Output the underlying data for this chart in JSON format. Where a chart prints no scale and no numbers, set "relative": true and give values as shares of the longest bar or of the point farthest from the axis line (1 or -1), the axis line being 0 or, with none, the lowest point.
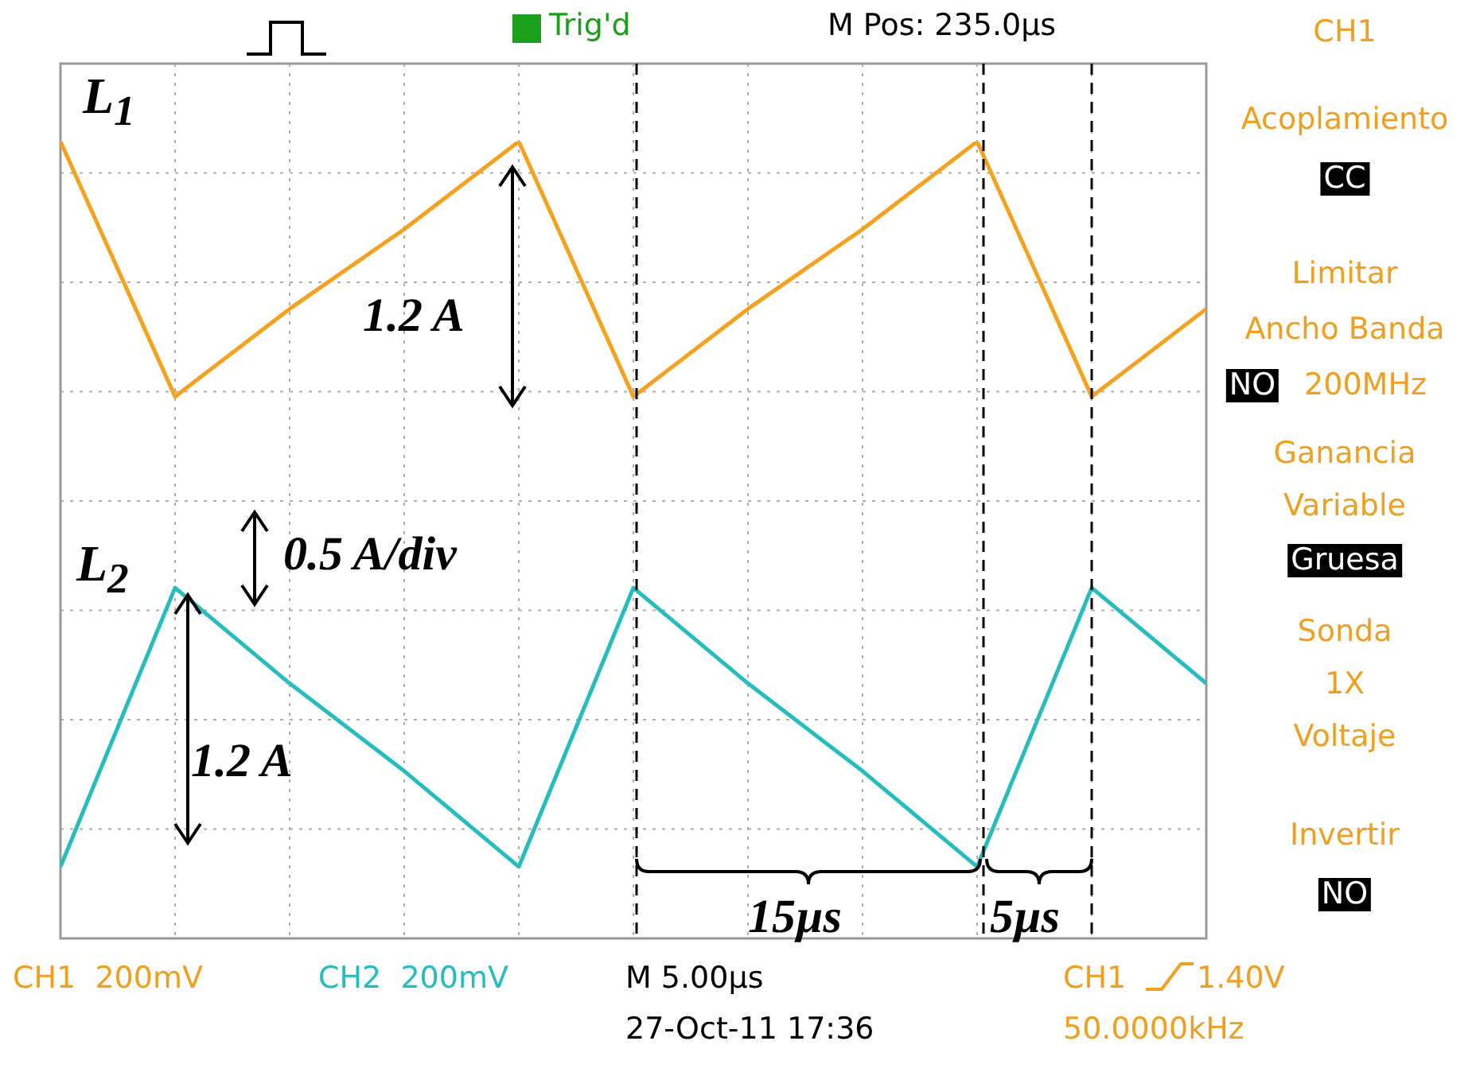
{
  "chart_data": {
    "type": "line",
    "relative": true,
    "grid": true,
    "marker": "none",
    "categories": [
      null,
      null,
      null,
      null,
      null,
      null,
      null,
      null,
      null,
      null,
      null
    ],
    "series": [
      {
        "name": "L$_{1}$",
        "color": "#f5a21e",
        "values": [
          1,
          0.68,
          0.79,
          0.89,
          1,
          0.68,
          0.79,
          0.89,
          1,
          0.68,
          0.79
        ]
      },
      {
        "name": "L$_{2}$",
        "color": "#27bdbd",
        "values": [
          0.09,
          0.44,
          0.32,
          0.21,
          0.09,
          0.44,
          0.32,
          0.21,
          0.09,
          0.44,
          0.32
        ]
      }
    ],
    "annotations": [
      "1.2 A",
      "0.5 A/div",
      "1.2 A",
      "15µs",
      "5µs",
      "Trig'd",
      "M Pos: 235.0µs",
      "CH1",
      "Acoplamiento",
      "CC",
      "Limitar",
      "Ancho Banda",
      "NO",
      "200MHz",
      "Ganancia",
      "Variable",
      "Gruesa",
      "Sonda",
      "1X",
      "Voltaje",
      "Invertir",
      "NO",
      "CH1  200mV",
      "CH2  200mV",
      "M 5.00µs",
      "27-Oct-11 17:36",
      "CH1",
      "1.40V",
      "50.0000kHz"
    ]
  }
}
